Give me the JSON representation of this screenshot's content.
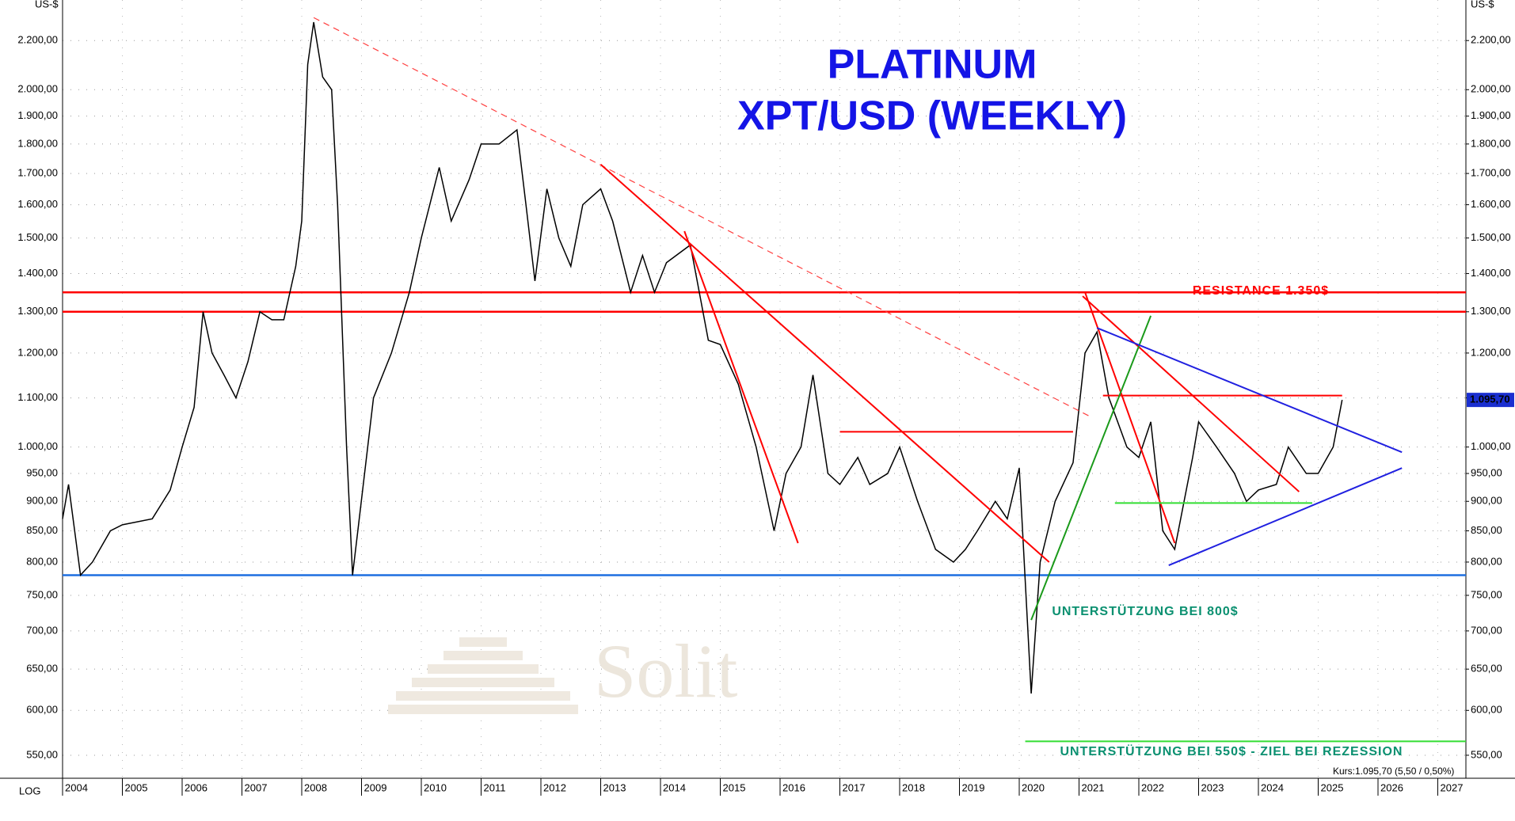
{
  "chart_data": {
    "type": "line",
    "title": "PLATINUM",
    "subtitle": "XPT/USD (WEEKLY)",
    "y_unit": "US-$",
    "scale_label": "LOG",
    "log_y": true,
    "grid": true,
    "watermark": "Solit",
    "footnote": "Kurs:1.095,70 (5,50 / 0,50%)",
    "last_price": {
      "value": 1095.7,
      "label": "1.095,70"
    },
    "annotations": [
      "RESISTANCE 1.350$",
      "UNTERSTÜTZUNG BEI 800$",
      "UNTERSTÜTZUNG BEI 550$ - ZIEL BEI REZESSION"
    ],
    "xlim": [
      2004,
      2027.47
    ],
    "xticks": [
      2004,
      2005,
      2006,
      2007,
      2008,
      2009,
      2010,
      2011,
      2012,
      2013,
      2014,
      2015,
      2016,
      2017,
      2018,
      2019,
      2020,
      2021,
      2022,
      2023,
      2024,
      2025,
      2026,
      2027
    ],
    "ylim": [
      526,
      2380
    ],
    "yticks": [
      {
        "value": 550,
        "label": "550,00"
      },
      {
        "value": 600,
        "label": "600,00"
      },
      {
        "value": 650,
        "label": "650,00"
      },
      {
        "value": 700,
        "label": "700,00"
      },
      {
        "value": 750,
        "label": "750,00"
      },
      {
        "value": 800,
        "label": "800,00"
      },
      {
        "value": 850,
        "label": "850,00"
      },
      {
        "value": 900,
        "label": "900,00"
      },
      {
        "value": 950,
        "label": "950,00"
      },
      {
        "value": 1000,
        "label": "1.000,00"
      },
      {
        "value": 1100,
        "label": "1.100,00"
      },
      {
        "value": 1200,
        "label": "1.200,00"
      },
      {
        "value": 1300,
        "label": "1.300,00"
      },
      {
        "value": 1400,
        "label": "1.400,00"
      },
      {
        "value": 1500,
        "label": "1.500,00"
      },
      {
        "value": 1600,
        "label": "1.600,00"
      },
      {
        "value": 1700,
        "label": "1.700,00"
      },
      {
        "value": 1800,
        "label": "1.800,00"
      },
      {
        "value": 1900,
        "label": "1.900,00"
      },
      {
        "value": 2000,
        "label": "2.000,00"
      },
      {
        "value": 2200,
        "label": "2.200,00"
      }
    ],
    "x": [
      2004.0,
      2004.1,
      2004.3,
      2004.5,
      2004.8,
      2005.0,
      2005.5,
      2005.8,
      2006.0,
      2006.2,
      2006.35,
      2006.5,
      2006.7,
      2006.9,
      2007.1,
      2007.3,
      2007.5,
      2007.7,
      2007.9,
      2008.0,
      2008.1,
      2008.2,
      2008.35,
      2008.5,
      2008.6,
      2008.75,
      2008.85,
      2008.95,
      2009.2,
      2009.5,
      2009.8,
      2010.0,
      2010.3,
      2010.5,
      2010.8,
      2011.0,
      2011.3,
      2011.6,
      2011.75,
      2011.9,
      2012.1,
      2012.3,
      2012.5,
      2012.7,
      2013.0,
      2013.2,
      2013.5,
      2013.7,
      2013.9,
      2014.1,
      2014.5,
      2014.8,
      2015.0,
      2015.3,
      2015.6,
      2015.9,
      2016.1,
      2016.35,
      2016.55,
      2016.8,
      2017.0,
      2017.3,
      2017.5,
      2017.8,
      2018.0,
      2018.3,
      2018.6,
      2018.9,
      2019.1,
      2019.3,
      2019.6,
      2019.8,
      2020.0,
      2020.2,
      2020.35,
      2020.6,
      2020.9,
      2021.1,
      2021.3,
      2021.5,
      2021.8,
      2022.0,
      2022.2,
      2022.4,
      2022.6,
      2022.9,
      2023.0,
      2023.3,
      2023.6,
      2023.8,
      2024.0,
      2024.3,
      2024.5,
      2024.8,
      2025.0,
      2025.25,
      2025.4
    ],
    "series": [
      {
        "name": "XPT/USD",
        "color": "#000000",
        "values": [
          870,
          930,
          780,
          800,
          850,
          860,
          870,
          920,
          1000,
          1080,
          1300,
          1200,
          1150,
          1100,
          1180,
          1300,
          1280,
          1280,
          1420,
          1550,
          2100,
          2280,
          2050,
          2000,
          1600,
          1000,
          780,
          860,
          1100,
          1200,
          1350,
          1500,
          1720,
          1550,
          1680,
          1800,
          1800,
          1850,
          1600,
          1380,
          1650,
          1500,
          1420,
          1600,
          1650,
          1550,
          1350,
          1450,
          1350,
          1430,
          1480,
          1230,
          1220,
          1130,
          1000,
          850,
          950,
          1000,
          1150,
          950,
          930,
          980,
          930,
          950,
          1000,
          900,
          820,
          800,
          820,
          850,
          900,
          870,
          960,
          620,
          800,
          900,
          970,
          1200,
          1250,
          1100,
          1000,
          980,
          1050,
          850,
          820,
          980,
          1050,
          1000,
          950,
          900,
          920,
          930,
          1000,
          950,
          950,
          1000,
          1095.7
        ]
      }
    ],
    "hlines": [
      {
        "value": 1350,
        "color": "#ff0000"
      },
      {
        "value": 1300,
        "color": "#ff0000"
      },
      {
        "value": 780,
        "color": "#1e6fe0"
      }
    ],
    "segments": [
      {
        "x": [
          2008.2,
          2021.2
        ],
        "y": [
          2300,
          1060
        ],
        "color": "#ff4040",
        "dashed": true
      },
      {
        "x": [
          2013.0,
          2020.5
        ],
        "y": [
          1730,
          800
        ],
        "color": "#ff0000",
        "dashed": false
      },
      {
        "x": [
          2014.4,
          2016.3
        ],
        "y": [
          1520,
          830
        ],
        "color": "#ff0000",
        "dashed": false
      },
      {
        "x": [
          2021.1,
          2022.6
        ],
        "y": [
          1350,
          830
        ],
        "color": "#ff0000",
        "dashed": false
      },
      {
        "x": [
          2021.06,
          2024.68
        ],
        "y": [
          1340,
          917
        ],
        "color": "#ff0000",
        "dashed": false
      },
      {
        "x": [
          2017.0,
          2020.9
        ],
        "y": [
          1030,
          1030
        ],
        "color": "#ff0000",
        "dashed": false
      },
      {
        "x": [
          2021.4,
          2025.4
        ],
        "y": [
          1105,
          1105
        ],
        "color": "#ff0000",
        "dashed": false
      },
      {
        "x": [
          2021.6,
          2024.9
        ],
        "y": [
          897,
          897
        ],
        "color": "#33dd33",
        "dashed": false
      },
      {
        "x": [
          2020.1,
          2027.47
        ],
        "y": [
          565,
          565
        ],
        "color": "#33dd33",
        "dashed": false
      },
      {
        "x": [
          2020.2,
          2022.2
        ],
        "y": [
          715,
          1290
        ],
        "color": "#1a9a1a",
        "dashed": false
      },
      {
        "x": [
          2021.3,
          2026.4
        ],
        "y": [
          1260,
          990
        ],
        "color": "#2020e0",
        "dashed": false
      },
      {
        "x": [
          2022.5,
          2026.4
        ],
        "y": [
          795,
          960
        ],
        "color": "#2020e0",
        "dashed": false
      }
    ]
  }
}
